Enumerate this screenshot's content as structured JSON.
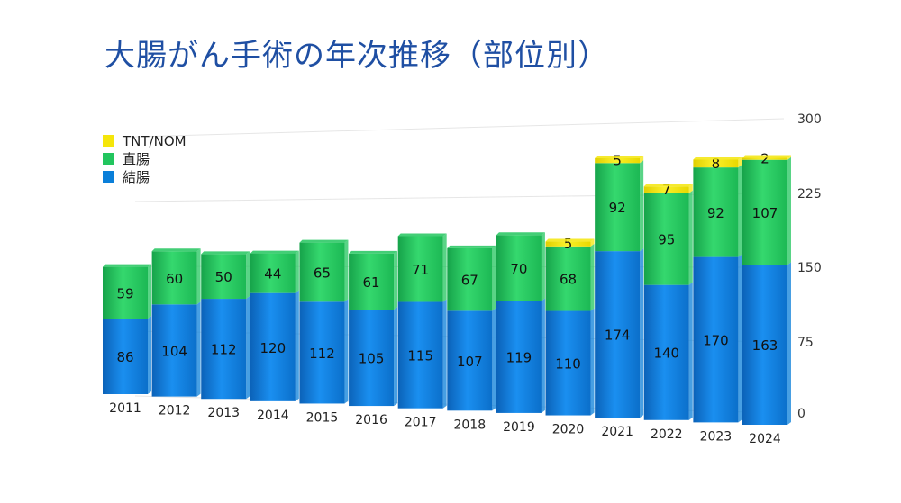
{
  "chart_data": {
    "type": "bar",
    "stacked": true,
    "title": "大腸がん手術の年次推移（部位別）",
    "categories": [
      "2011",
      "2012",
      "2013",
      "2014",
      "2015",
      "2016",
      "2017",
      "2018",
      "2019",
      "2020",
      "2021",
      "2022",
      "2023",
      "2024"
    ],
    "series": [
      {
        "name": "結腸",
        "color": "#0a7fd9",
        "values": [
          86,
          104,
          112,
          120,
          112,
          105,
          115,
          107,
          119,
          110,
          174,
          140,
          170,
          163
        ]
      },
      {
        "name": "直腸",
        "color": "#22c55e",
        "values": [
          59,
          60,
          50,
          44,
          65,
          61,
          71,
          67,
          70,
          68,
          92,
          95,
          92,
          107
        ]
      },
      {
        "name": "TNT/NOM",
        "color": "#f5e60a",
        "values": [
          0,
          0,
          0,
          0,
          0,
          0,
          0,
          0,
          0,
          5,
          5,
          7,
          8,
          2
        ]
      }
    ],
    "legend_order": [
      "TNT/NOM",
      "直腸",
      "結腸"
    ],
    "legend_position": "top-left",
    "ylim": [
      0,
      300
    ],
    "yticks": [
      "0",
      "75",
      "150",
      "225",
      "300"
    ],
    "y_axis_side": "right",
    "grid": true
  }
}
